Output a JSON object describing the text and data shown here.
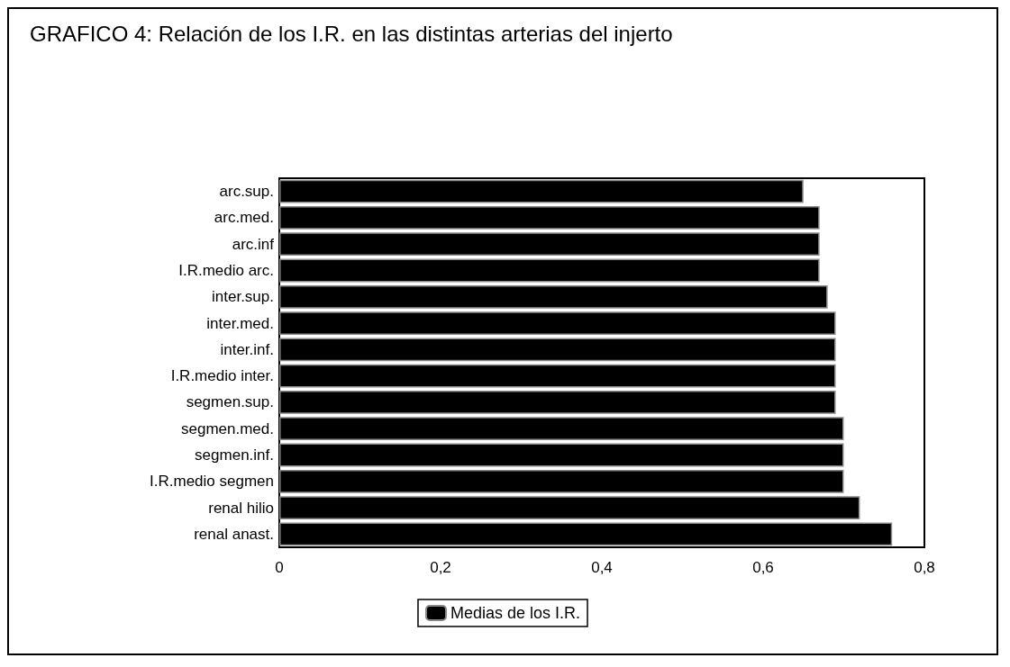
{
  "chart_data": {
    "type": "bar",
    "orientation": "horizontal",
    "title": "GRAFICO 4: Relación de los I.R. en las distintas arterias del injerto",
    "categories": [
      "arc.sup.",
      "arc.med.",
      "arc.inf",
      "I.R.medio arc.",
      "inter.sup.",
      "inter.med.",
      "inter.inf.",
      "I.R.medio inter.",
      "segmen.sup.",
      "segmen.med.",
      "segmen.inf.",
      "I.R.medio segmen",
      "renal hilio",
      "renal anast."
    ],
    "series": [
      {
        "name": "Medias de los I.R.",
        "color": "#000000",
        "values": [
          0.65,
          0.67,
          0.67,
          0.67,
          0.68,
          0.69,
          0.69,
          0.69,
          0.69,
          0.7,
          0.7,
          0.7,
          0.72,
          0.76
        ]
      }
    ],
    "xlim": [
      0,
      0.8
    ],
    "xticks": [
      0,
      {
        "value": 0.2,
        "label": "0,2"
      },
      {
        "value": 0.4,
        "label": "0,4"
      },
      {
        "value": 0.6,
        "label": "0,6"
      },
      {
        "value": 0.8,
        "label": "0,8"
      }
    ],
    "grid": false,
    "legend": "bottom"
  }
}
